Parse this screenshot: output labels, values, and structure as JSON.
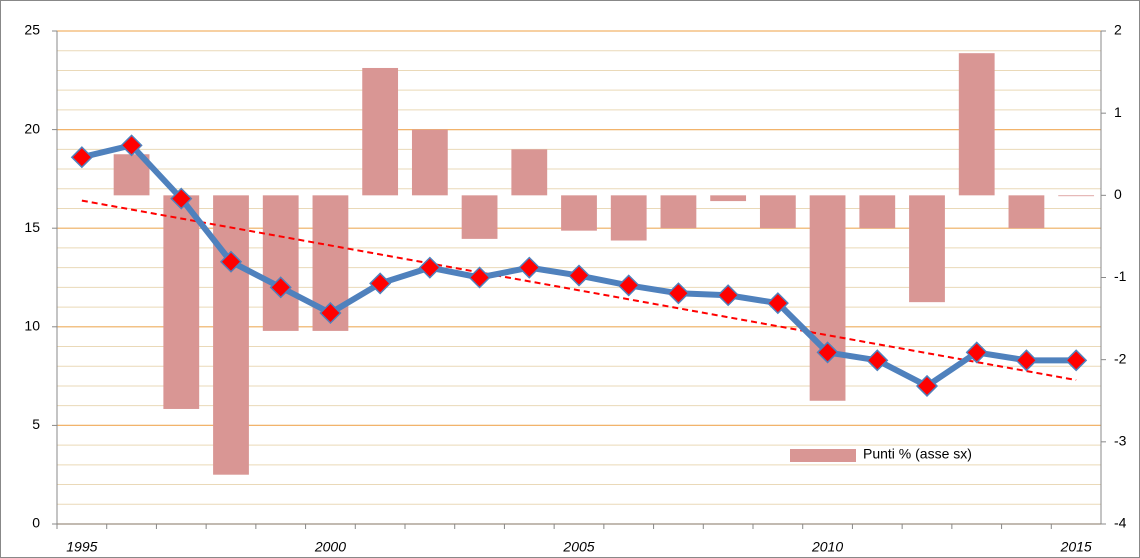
{
  "chart_data": {
    "type": "bar-line",
    "categories": [
      "1995",
      null,
      null,
      null,
      null,
      "2000",
      null,
      null,
      null,
      null,
      "2005",
      null,
      null,
      null,
      null,
      "2010",
      null,
      null,
      null,
      null,
      "2015"
    ],
    "series": [
      {
        "name": "Punti % (asse sx)",
        "type": "bar",
        "axis": "y2",
        "color": "#d99694",
        "values": [
          null,
          0.5,
          -2.6,
          -3.4,
          -1.65,
          -1.65,
          1.55,
          0.8,
          -0.53,
          0.56,
          -0.43,
          -0.55,
          -0.4,
          -0.07,
          -0.4,
          -2.5,
          -0.4,
          -1.3,
          1.73,
          -0.4,
          -0.01
        ]
      },
      {
        "type": "line",
        "color": "#4f81bd",
        "marker_color": "#ff0000",
        "values": [
          18.6,
          19.2,
          16.5,
          13.3,
          12.0,
          10.7,
          12.2,
          13.0,
          12.5,
          13.0,
          12.6,
          12.1,
          11.7,
          11.6,
          11.2,
          8.7,
          8.3,
          7.0,
          8.7,
          8.3,
          8.3
        ]
      }
    ],
    "trend": {
      "start": 16.4,
      "end": 7.3,
      "color": "#ff0000"
    },
    "ylim": [
      0,
      25
    ],
    "yticks": [
      0,
      5,
      10,
      15,
      20,
      25
    ],
    "y2lim": [
      -4,
      2
    ],
    "y2ticks": [
      -4,
      -3,
      -2,
      -1,
      0,
      1,
      2
    ],
    "grid": true,
    "legend": "bottom-right"
  }
}
